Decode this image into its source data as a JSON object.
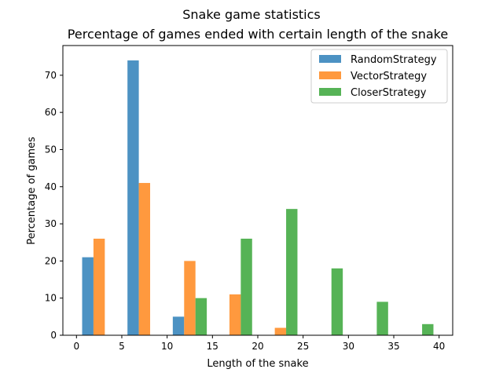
{
  "chart_data": {
    "type": "bar",
    "suptitle": "Snake game statistics",
    "title": "Percentage of games ended with certain length of the snake",
    "xlabel": "Length of the snake",
    "ylabel": "Percentage of games",
    "xlim": [
      -1.5,
      41.5
    ],
    "ylim": [
      0,
      78
    ],
    "xticks": [
      0,
      5,
      10,
      15,
      20,
      25,
      30,
      35,
      40
    ],
    "yticks": [
      0,
      10,
      20,
      30,
      40,
      50,
      60,
      70
    ],
    "bar_width": 1.25,
    "legend_position": "top-right",
    "grid": false,
    "series": [
      {
        "name": "RandomStrategy",
        "color": "#1f77b4",
        "x": [
          1.25,
          6.25,
          11.25
        ],
        "values": [
          21,
          74,
          5
        ]
      },
      {
        "name": "VectorStrategy",
        "color": "#ff7f0e",
        "x": [
          2.5,
          7.5,
          12.5,
          17.5,
          22.5
        ],
        "values": [
          26,
          41,
          20,
          11,
          2
        ]
      },
      {
        "name": "CloserStrategy",
        "color": "#2ca02c",
        "x": [
          13.75,
          18.75,
          23.75,
          28.75,
          33.75,
          38.75
        ],
        "values": [
          10,
          26,
          34,
          18,
          9,
          3
        ]
      }
    ]
  }
}
